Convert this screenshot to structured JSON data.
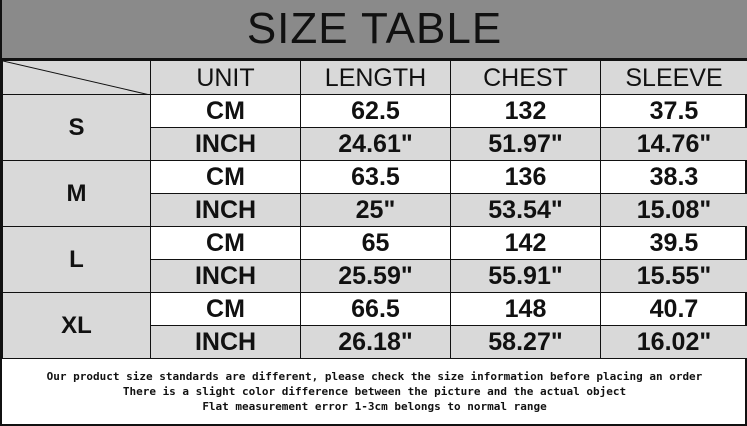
{
  "title": "SIZE TABLE",
  "headers": [
    "UNIT",
    "LENGTH",
    "CHEST",
    "SLEEVE"
  ],
  "rows": [
    {
      "size": "S",
      "cm": [
        "CM",
        "62.5",
        "132",
        "37.5"
      ],
      "inch": [
        "INCH",
        "24.61\"",
        "51.97\"",
        "14.76\""
      ]
    },
    {
      "size": "M",
      "cm": [
        "CM",
        "63.5",
        "136",
        "38.3"
      ],
      "inch": [
        "INCH",
        "25\"",
        "53.54\"",
        "15.08\""
      ]
    },
    {
      "size": "L",
      "cm": [
        "CM",
        "65",
        "142",
        "39.5"
      ],
      "inch": [
        "INCH",
        "25.59\"",
        "55.91\"",
        "15.55\""
      ]
    },
    {
      "size": "XL",
      "cm": [
        "CM",
        "66.5",
        "148",
        "40.7"
      ],
      "inch": [
        "INCH",
        "26.18\"",
        "58.27\"",
        "16.02\""
      ]
    }
  ],
  "notes": [
    "Our product size standards are different, please check the size information before placing an order",
    "There is a slight color difference between the picture and the actual object",
    "Flat measurement error 1-3cm belongs to normal range"
  ]
}
